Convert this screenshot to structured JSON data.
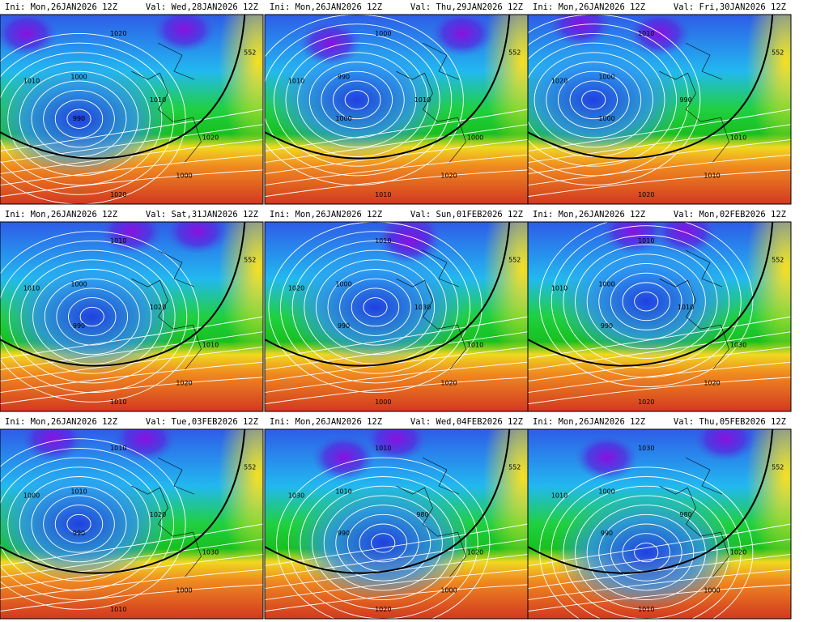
{
  "panels": [
    {
      "init": "Ini: Mon,26JAN2026 12Z",
      "valid": "Val: Wed,28JAN2026 12Z",
      "contour_labels": [
        "1020",
        "1010",
        "1000",
        "990",
        "1010",
        "1020",
        "552",
        "1000",
        "1020"
      ]
    },
    {
      "init": "Ini: Mon,26JAN2026 12Z",
      "valid": "Val: Thu,29JAN2026 12Z",
      "contour_labels": [
        "1000",
        "1010",
        "990",
        "1000",
        "1010",
        "1000",
        "552",
        "1020",
        "1010"
      ]
    },
    {
      "init": "Ini: Mon,26JAN2026 12Z",
      "valid": "Val: Fri,30JAN2026 12Z",
      "contour_labels": [
        "1010",
        "1020",
        "1000",
        "1000",
        "990",
        "1010",
        "552",
        "1010",
        "1020"
      ]
    },
    {
      "init": "Ini: Mon,26JAN2026 12Z",
      "valid": "Val: Sat,31JAN2026 12Z",
      "contour_labels": [
        "1010",
        "1010",
        "1000",
        "990",
        "1020",
        "1010",
        "552",
        "1020",
        "1010"
      ]
    },
    {
      "init": "Ini: Mon,26JAN2026 12Z",
      "valid": "Val: Sun,01FEB2026 12Z",
      "contour_labels": [
        "1010",
        "1020",
        "1000",
        "990",
        "1030",
        "1010",
        "552",
        "1020",
        "1000"
      ]
    },
    {
      "init": "Ini: Mon,26JAN2026 12Z",
      "valid": "Val: Mon,02FEB2026 12Z",
      "contour_labels": [
        "1010",
        "1010",
        "1000",
        "990",
        "1010",
        "1030",
        "552",
        "1020",
        "1020"
      ]
    },
    {
      "init": "Ini: Mon,26JAN2026 12Z",
      "valid": "Val: Tue,03FEB2026 12Z",
      "contour_labels": [
        "1010",
        "1000",
        "1010",
        "990",
        "1020",
        "1030",
        "552",
        "1000",
        "1010"
      ]
    },
    {
      "init": "Ini: Mon,26JAN2026 12Z",
      "valid": "Val: Wed,04FEB2026 12Z",
      "contour_labels": [
        "1010",
        "1030",
        "1010",
        "990",
        "980",
        "1020",
        "552",
        "1000",
        "1020"
      ]
    },
    {
      "init": "Ini: Mon,26JAN2026 12Z",
      "valid": "Val: Thu,05FEB2026 12Z",
      "contour_labels": [
        "1030",
        "1010",
        "1000",
        "990",
        "980",
        "1020",
        "552",
        "1000",
        "1010"
      ]
    }
  ]
}
